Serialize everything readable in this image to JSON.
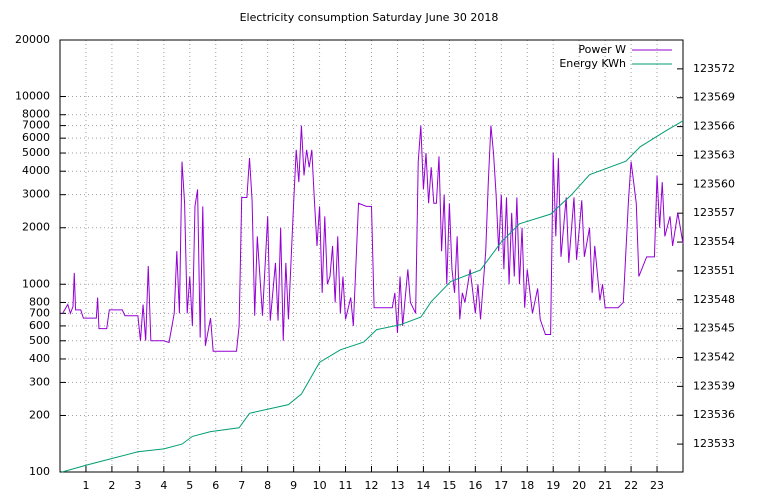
{
  "chart_data": {
    "type": "line",
    "title": "Electricity consumption Saturday June 30 2018",
    "xlim": [
      0,
      24
    ],
    "xticks": [
      1,
      2,
      3,
      4,
      5,
      6,
      7,
      8,
      9,
      10,
      11,
      12,
      13,
      14,
      15,
      16,
      17,
      18,
      19,
      20,
      21,
      22,
      23
    ],
    "ylim": [
      100,
      20000
    ],
    "yscale": "log",
    "yticks": [
      100,
      200,
      300,
      400,
      500,
      600,
      700,
      800,
      1000,
      2000,
      3000,
      4000,
      5000,
      6000,
      7000,
      8000,
      10000,
      20000
    ],
    "y2lim": [
      123530.1,
      123575
    ],
    "y2ticks": [
      123533,
      123536,
      123539,
      123542,
      123545,
      123548,
      123551,
      123554,
      123557,
      123560,
      123563,
      123566,
      123569,
      123572
    ],
    "grid": true,
    "legend": "top-right",
    "series": [
      {
        "name": "Power W",
        "color": "#9400d3",
        "x": [
          0.1,
          0.3,
          0.4,
          0.5,
          0.55,
          0.6,
          0.8,
          0.9,
          1.4,
          1.45,
          1.5,
          1.8,
          1.9,
          2.4,
          2.5,
          3.0,
          3.1,
          3.2,
          3.3,
          3.4,
          3.5,
          4.0,
          4.2,
          4.4,
          4.5,
          4.6,
          4.7,
          4.8,
          4.9,
          5.0,
          5.1,
          5.2,
          5.3,
          5.4,
          5.5,
          5.6,
          5.8,
          5.9,
          6.3,
          6.8,
          6.9,
          7.0,
          7.2,
          7.3,
          7.4,
          7.5,
          7.6,
          7.8,
          8.0,
          8.1,
          8.3,
          8.4,
          8.5,
          8.6,
          8.7,
          8.8,
          9.0,
          9.1,
          9.2,
          9.3,
          9.4,
          9.5,
          9.6,
          9.7,
          9.8,
          9.9,
          10.0,
          10.1,
          10.2,
          10.3,
          10.4,
          10.5,
          10.6,
          10.7,
          10.8,
          10.9,
          11.0,
          11.2,
          11.3,
          11.5,
          11.8,
          12.0,
          12.1,
          12.8,
          12.9,
          13.0,
          13.1,
          13.2,
          13.4,
          13.5,
          13.7,
          13.8,
          13.9,
          14.0,
          14.1,
          14.2,
          14.3,
          14.4,
          14.5,
          14.6,
          14.7,
          14.8,
          14.9,
          15.0,
          15.1,
          15.2,
          15.3,
          15.4,
          15.5,
          15.6,
          15.8,
          16.0,
          16.1,
          16.2,
          16.4,
          16.5,
          16.6,
          16.7,
          16.8,
          16.9,
          17.0,
          17.1,
          17.2,
          17.3,
          17.4,
          17.5,
          17.6,
          17.7,
          17.8,
          17.9,
          18.0,
          18.2,
          18.4,
          18.5,
          18.7,
          18.9,
          19.0,
          19.1,
          19.2,
          19.3,
          19.5,
          19.6,
          19.8,
          19.9,
          20.1,
          20.2,
          20.4,
          20.5,
          20.6,
          20.8,
          20.9,
          21.0,
          21.5,
          21.7,
          21.9,
          22.0,
          22.2,
          22.3,
          22.6,
          22.9,
          23.0,
          23.1,
          23.2,
          23.3,
          23.5,
          23.6,
          23.8,
          24.0
        ],
        "values": [
          700,
          780,
          700,
          760,
          1150,
          730,
          730,
          660,
          660,
          850,
          580,
          580,
          730,
          730,
          680,
          680,
          500,
          780,
          500,
          1250,
          500,
          500,
          490,
          700,
          1500,
          700,
          4500,
          2700,
          700,
          1100,
          600,
          2600,
          3200,
          520,
          2600,
          470,
          660,
          440,
          440,
          440,
          600,
          2900,
          2900,
          4700,
          2800,
          680,
          1800,
          680,
          2300,
          640,
          1300,
          640,
          2000,
          500,
          1300,
          650,
          2700,
          5200,
          3500,
          7000,
          3800,
          5200,
          4200,
          5200,
          2800,
          1600,
          2600,
          900,
          2300,
          1000,
          1100,
          1600,
          800,
          1800,
          700,
          1100,
          650,
          850,
          600,
          2700,
          2600,
          2600,
          750,
          750,
          900,
          550,
          1100,
          600,
          1200,
          800,
          700,
          4500,
          7000,
          3200,
          5000,
          2700,
          4200,
          2700,
          2700,
          4800,
          1500,
          3000,
          1000,
          2700,
          1200,
          900,
          1800,
          650,
          900,
          800,
          1200,
          700,
          1000,
          650,
          1500,
          3500,
          7000,
          5000,
          3000,
          1500,
          3000,
          1200,
          2900,
          1000,
          2400,
          1100,
          2900,
          1000,
          2000,
          750,
          1200,
          700,
          950,
          650,
          540,
          540,
          5000,
          1800,
          4700,
          1400,
          2900,
          1300,
          2900,
          1350,
          2800,
          1400,
          2000,
          900,
          1600,
          820,
          1000,
          750,
          750,
          800,
          2800,
          4500,
          2700,
          1100,
          1400,
          1400,
          3800,
          2000,
          3500,
          1800,
          2300,
          1600,
          2400,
          1650
        ]
      },
      {
        "name": "Energy KWh",
        "color": "#009e73",
        "axis": "y2",
        "x": [
          0.08,
          1,
          2,
          3,
          4,
          4.7,
          5.1,
          5.8,
          6.9,
          7.3,
          7.95,
          8.8,
          9.3,
          10,
          10.8,
          11.7,
          12.2,
          13.1,
          13.9,
          14.3,
          15.05,
          16.2,
          17,
          17.7,
          18.9,
          19.7,
          20.4,
          21.8,
          22.35,
          23.3,
          24
        ],
        "values": [
          123530.1,
          123530.8,
          123531.5,
          123532.2,
          123532.5,
          123533.0,
          123533.8,
          123534.3,
          123534.7,
          123536.2,
          123536.6,
          123537.1,
          123538.2,
          123541.5,
          123542.8,
          123543.6,
          123544.9,
          123545.4,
          123546.2,
          123547.8,
          123549.9,
          123551.1,
          123554,
          123555.9,
          123556.9,
          123558.9,
          123561,
          123562.4,
          123563.9,
          123565.5,
          123566.6
        ]
      }
    ]
  }
}
